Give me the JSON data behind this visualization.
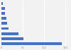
{
  "values": [
    141,
    51,
    40,
    17,
    13,
    11,
    9,
    8,
    3
  ],
  "bar_color": "#4472c4",
  "background_color": "#f2f2f2",
  "grid_color": "#ffffff",
  "xlim": [
    0,
    160
  ],
  "bar_height": 0.55
}
